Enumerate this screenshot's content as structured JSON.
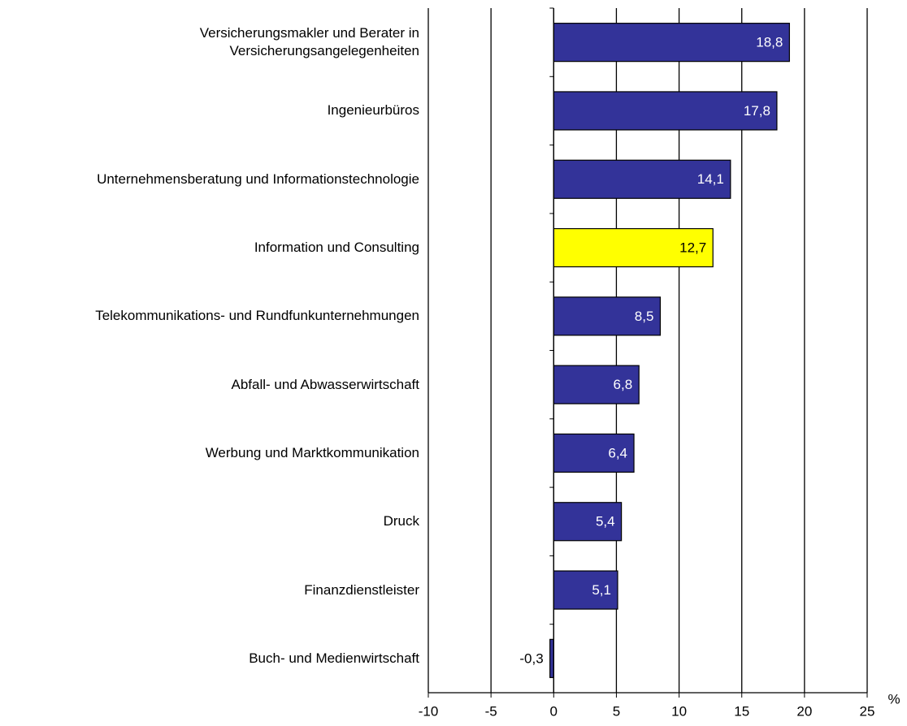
{
  "chart_data": {
    "type": "bar",
    "orientation": "horizontal",
    "categories": [
      "Versicherungsmakler und Berater in\nVersicherungsangelegenheiten",
      "Ingenieurbüros",
      "Unternehmensberatung und Informationstechnologie",
      "Information und Consulting",
      "Telekommunikations- und Rundfunkunternehmungen",
      "Abfall- und Abwasserwirtschaft",
      "Werbung und Marktkommunikation",
      "Druck",
      "Finanzdienstleister",
      "Buch- und Medienwirtschaft"
    ],
    "values": [
      18.8,
      17.8,
      14.1,
      12.7,
      8.5,
      6.8,
      6.4,
      5.4,
      5.1,
      -0.3
    ],
    "value_labels": [
      "18,8",
      "17,8",
      "14,1",
      "12,7",
      "8,5",
      "6,8",
      "6,4",
      "5,4",
      "5,1",
      "-0,3"
    ],
    "colors": [
      "#333399",
      "#333399",
      "#333399",
      "#ffff00",
      "#333399",
      "#333399",
      "#333399",
      "#333399",
      "#333399",
      "#333399"
    ],
    "x_label": "%",
    "xlim": [
      -10,
      25
    ],
    "xticks": [
      -10,
      -5,
      0,
      5,
      10,
      15,
      20,
      25
    ],
    "grid": true
  }
}
